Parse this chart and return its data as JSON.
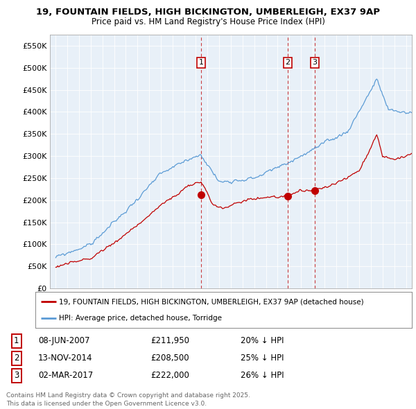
{
  "title_line1": "19, FOUNTAIN FIELDS, HIGH BICKINGTON, UMBERLEIGH, EX37 9AP",
  "title_line2": "Price paid vs. HM Land Registry's House Price Index (HPI)",
  "ylim": [
    0,
    575000
  ],
  "yticks": [
    0,
    50000,
    100000,
    150000,
    200000,
    250000,
    300000,
    350000,
    400000,
    450000,
    500000,
    550000
  ],
  "ytick_labels": [
    "£0",
    "£50K",
    "£100K",
    "£150K",
    "£200K",
    "£250K",
    "£300K",
    "£350K",
    "£400K",
    "£450K",
    "£500K",
    "£550K"
  ],
  "hpi_color": "#5b9bd5",
  "price_color": "#c00000",
  "chart_bg": "#e8f0f8",
  "background_color": "#ffffff",
  "transactions": [
    {
      "num": 1,
      "date": "08-JUN-2007",
      "price": 211950,
      "price_str": "£211,950",
      "pct": "20% ↓ HPI",
      "x_year": 2007.44
    },
    {
      "num": 2,
      "date": "13-NOV-2014",
      "price": 208500,
      "price_str": "£208,500",
      "pct": "25% ↓ HPI",
      "x_year": 2014.87
    },
    {
      "num": 3,
      "date": "02-MAR-2017",
      "price": 222000,
      "price_str": "£222,000",
      "pct": "26% ↓ HPI",
      "x_year": 2017.17
    }
  ],
  "footer_line1": "Contains HM Land Registry data © Crown copyright and database right 2025.",
  "footer_line2": "This data is licensed under the Open Government Licence v3.0.",
  "legend_label1": "19, FOUNTAIN FIELDS, HIGH BICKINGTON, UMBERLEIGH, EX37 9AP (detached house)",
  "legend_label2": "HPI: Average price, detached house, Torridge",
  "xlim_left": 1994.5,
  "xlim_right": 2025.5
}
